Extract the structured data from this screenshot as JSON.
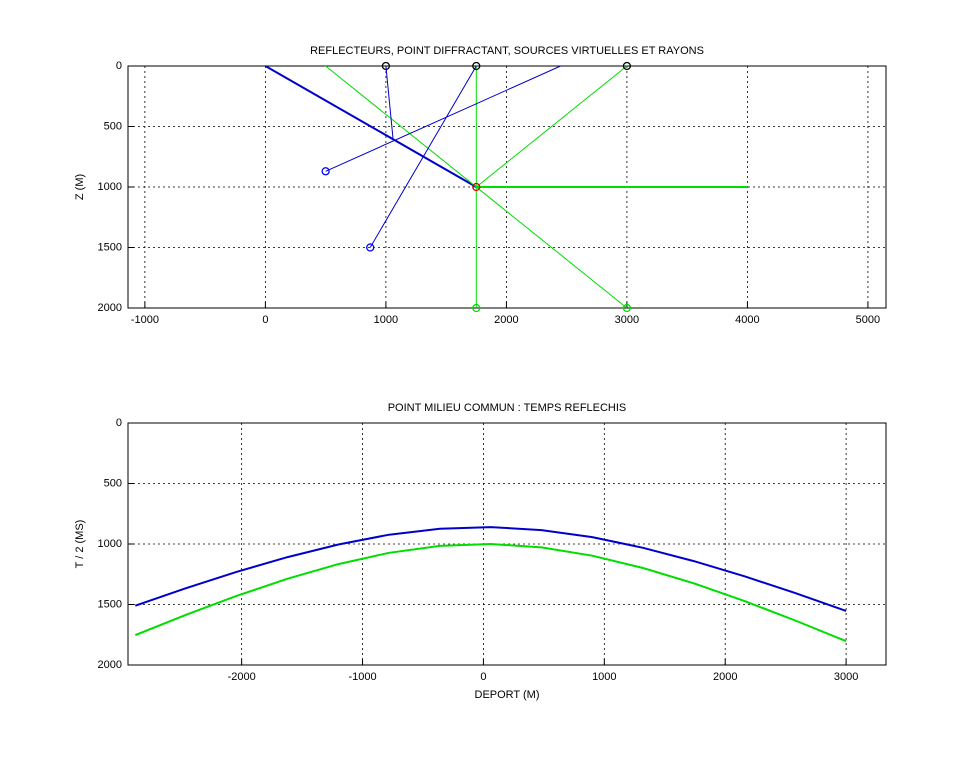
{
  "chart_data": [
    {
      "type": "line",
      "title": "REFLECTEURS, POINT DIFFRACTANT, SOURCES VIRTUELLES ET RAYONS",
      "ylabel": "Z (M)",
      "xlim": [
        -1140,
        5150
      ],
      "xticks": [
        -1000,
        0,
        1000,
        2000,
        3000,
        4000,
        5000
      ],
      "ylim": [
        0,
        2000
      ],
      "yticks": [
        0,
        500,
        1000,
        1500,
        2000
      ],
      "y_reversed": true,
      "grid": true,
      "series": [
        {
          "color": "#0000cc",
          "linewidth": 2,
          "x": [
            0,
            1750
          ],
          "values": [
            0,
            1000
          ]
        },
        {
          "color": "#00dd00",
          "linewidth": 2,
          "x": [
            1750,
            4000
          ],
          "values": [
            1000,
            1000
          ]
        },
        {
          "color": "#00dd00",
          "linewidth": 1,
          "x": [
            500,
            3000,
            null,
            1750,
            1750,
            null,
            3000,
            1750
          ],
          "values": [
            0,
            2000,
            null,
            0,
            2000,
            null,
            0,
            1000
          ]
        },
        {
          "color": "#0000cc",
          "linewidth": 1,
          "x": [
            1000,
            1060,
            null,
            2450,
            500,
            null,
            1750,
            870
          ],
          "values": [
            0,
            606,
            null,
            0,
            870,
            null,
            0,
            1500
          ]
        },
        {
          "color": "#000000",
          "marker": "o",
          "x": [
            1000,
            1750,
            3000
          ],
          "values": [
            0,
            0,
            0
          ]
        },
        {
          "color": "#0000ff",
          "marker": "o",
          "x": [
            500,
            870
          ],
          "values": [
            870,
            1500
          ]
        },
        {
          "color": "#00dd00",
          "marker": "o",
          "x": [
            1750,
            3000
          ],
          "values": [
            2000,
            2000
          ]
        },
        {
          "color": "#dd0000",
          "marker": "o",
          "x": [
            1750
          ],
          "values": [
            1000
          ]
        }
      ]
    },
    {
      "type": "line",
      "title": "POINT MILIEU COMMUN : TEMPS REFLECHIS",
      "xlabel": "DEPORT (M)",
      "ylabel": "T / 2 (MS)",
      "xlim": [
        -2940,
        3330
      ],
      "xticks": [
        -2000,
        -1000,
        0,
        1000,
        2000,
        3000
      ],
      "ylim": [
        0,
        2000
      ],
      "yticks": [
        0,
        500,
        1000,
        1500,
        2000
      ],
      "y_reversed": true,
      "grid": true,
      "series": [
        {
          "color": "#0000cc",
          "linewidth": 2,
          "x": [
            -2880,
            -2460,
            -2040,
            -1620,
            -1200,
            -780,
            -360,
            60,
            480,
            900,
            1320,
            1740,
            2160,
            2580,
            3000
          ],
          "values": [
            1510,
            1365,
            1230,
            1108,
            1004,
            923,
            874,
            860,
            885,
            943,
            1031,
            1141,
            1267,
            1406,
            1553
          ]
        },
        {
          "color": "#00dd00",
          "linewidth": 2,
          "x": [
            -2880,
            -2460,
            -2040,
            -1620,
            -1200,
            -780,
            -360,
            60,
            480,
            900,
            1320,
            1740,
            2160,
            2580,
            3000
          ],
          "values": [
            1753,
            1585,
            1428,
            1287,
            1166,
            1073,
            1016,
            1000,
            1028,
            1097,
            1198,
            1325,
            1472,
            1632,
            1803
          ]
        }
      ]
    }
  ]
}
